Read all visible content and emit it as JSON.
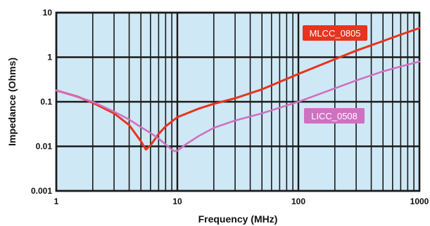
{
  "chart_data": {
    "type": "line",
    "title": "",
    "xlabel": "Frequency (MHz)",
    "ylabel": "Impedance  (Ohms)",
    "xscale": "log",
    "yscale": "log",
    "xlim": [
      1,
      1000
    ],
    "ylim": [
      0.001,
      10
    ],
    "x_ticks": [
      1,
      10,
      100,
      1000
    ],
    "x_tick_labels": [
      "1",
      "10",
      "100",
      "1000"
    ],
    "y_ticks": [
      0.001,
      0.01,
      0.1,
      1,
      10
    ],
    "y_tick_labels": [
      "0.001",
      "0.01",
      "0.1",
      "1",
      "10"
    ],
    "grid": true,
    "plot_background": "#cfe8f5",
    "series": [
      {
        "name": "MLCC_0805",
        "color": "#e8331e",
        "label_bg": "#e8331e",
        "x": [
          1,
          1.5,
          2,
          3,
          4,
          5,
          5.5,
          6,
          7,
          8,
          10,
          15,
          20,
          30,
          50,
          100,
          200,
          300,
          500,
          700,
          1000
        ],
        "y": [
          0.18,
          0.13,
          0.095,
          0.055,
          0.03,
          0.013,
          0.0085,
          0.0105,
          0.019,
          0.028,
          0.045,
          0.07,
          0.09,
          0.12,
          0.19,
          0.42,
          0.9,
          1.4,
          2.3,
          3.2,
          4.5
        ]
      },
      {
        "name": "LICC_0508",
        "color": "#d070c0",
        "label_bg": "#d070c0",
        "x": [
          1,
          2,
          3,
          4,
          5,
          6,
          7,
          8,
          9,
          9.5,
          10,
          12,
          15,
          20,
          30,
          50,
          100,
          200,
          300,
          500,
          700,
          1000
        ],
        "y": [
          0.18,
          0.1,
          0.06,
          0.04,
          0.027,
          0.02,
          0.015,
          0.011,
          0.0085,
          0.0078,
          0.008,
          0.0115,
          0.017,
          0.026,
          0.038,
          0.055,
          0.1,
          0.2,
          0.3,
          0.48,
          0.62,
          0.8
        ]
      }
    ]
  }
}
